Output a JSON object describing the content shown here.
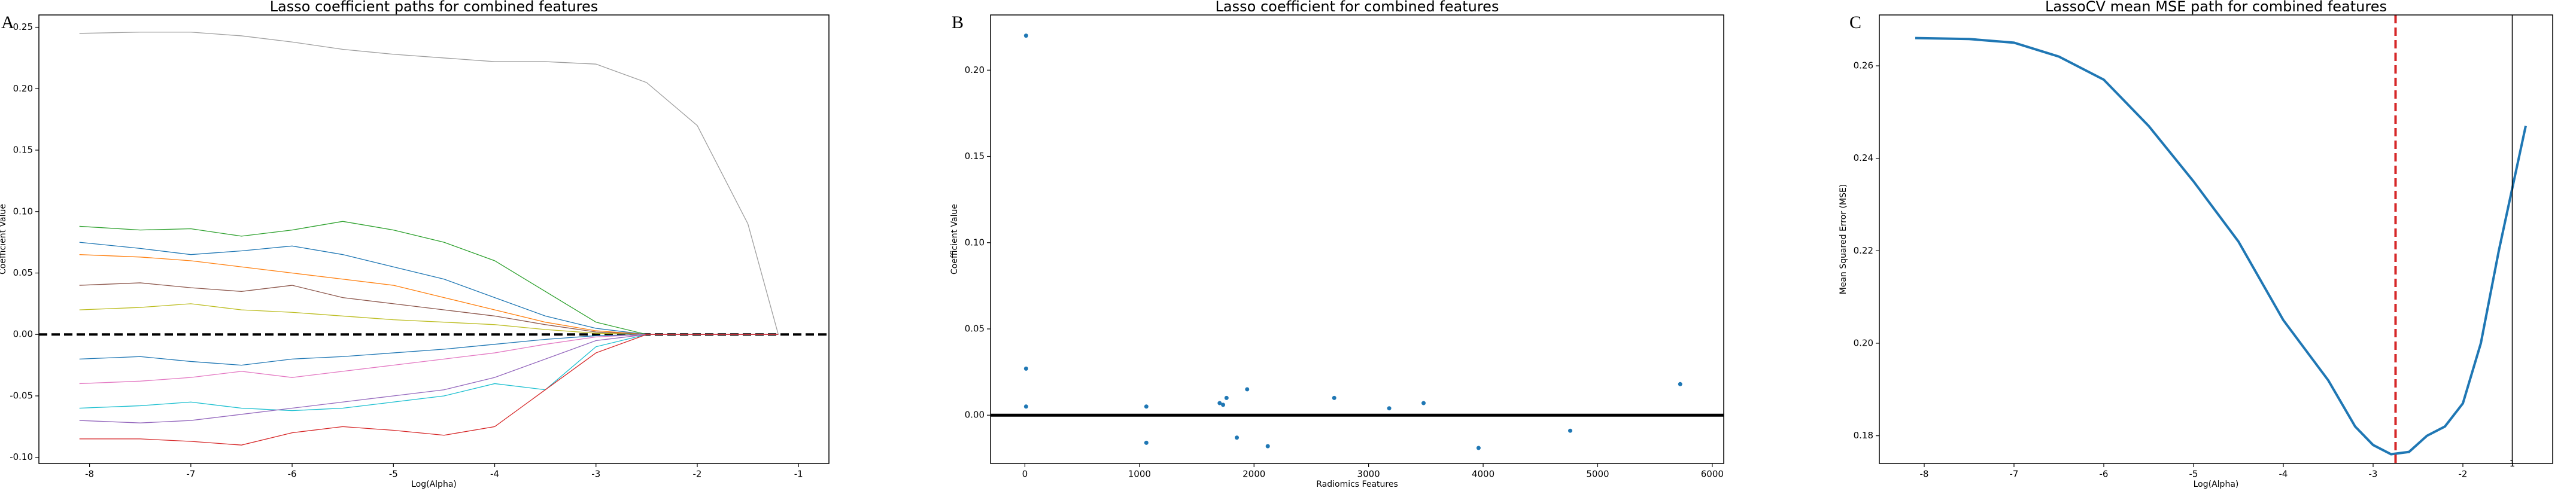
{
  "chart_data": [
    {
      "type": "line",
      "panel_label": "A",
      "title": "Lasso coefficient paths for combined features",
      "x_label": "Log(Alpha)",
      "y_label": "Coefficient Value",
      "x": [
        -8.1,
        -7.5,
        -7,
        -6.5,
        -6,
        -5.5,
        -5,
        -4.5,
        -4,
        -3.5,
        -3,
        -2.5,
        -2,
        -1.5,
        -1.2
      ],
      "series": [
        {
          "color": "#9e9e9e",
          "values": [
            0.245,
            0.246,
            0.246,
            0.243,
            0.238,
            0.232,
            0.228,
            0.225,
            0.222,
            0.222,
            0.22,
            0.205,
            0.17,
            0.09,
            0
          ]
        },
        {
          "color": "#2ca02c",
          "values": [
            0.088,
            0.085,
            0.086,
            0.08,
            0.085,
            0.092,
            0.085,
            0.075,
            0.06,
            0.035,
            0.01,
            0,
            0,
            0,
            0
          ]
        },
        {
          "color": "#1f77b4",
          "values": [
            0.075,
            0.07,
            0.065,
            0.068,
            0.072,
            0.065,
            0.055,
            0.045,
            0.03,
            0.015,
            0.005,
            0,
            0,
            0,
            0
          ]
        },
        {
          "color": "#ff7f0e",
          "values": [
            0.065,
            0.063,
            0.06,
            0.055,
            0.05,
            0.045,
            0.04,
            0.03,
            0.02,
            0.01,
            0.003,
            0,
            0,
            0,
            0
          ]
        },
        {
          "color": "#8c564b",
          "values": [
            0.04,
            0.042,
            0.038,
            0.035,
            0.04,
            0.03,
            0.025,
            0.02,
            0.015,
            0.008,
            0.002,
            0,
            0,
            0,
            0
          ]
        },
        {
          "color": "#bcbd22",
          "values": [
            0.02,
            0.022,
            0.025,
            0.02,
            0.018,
            0.015,
            0.012,
            0.01,
            0.008,
            0.004,
            0.001,
            0,
            0,
            0,
            0
          ]
        },
        {
          "color": "#1f77b4",
          "values": [
            -0.02,
            -0.018,
            -0.022,
            -0.025,
            -0.02,
            -0.018,
            -0.015,
            -0.012,
            -0.008,
            -0.004,
            -0.001,
            0,
            0,
            0,
            0
          ]
        },
        {
          "color": "#e377c2",
          "values": [
            -0.04,
            -0.038,
            -0.035,
            -0.03,
            -0.035,
            -0.03,
            -0.025,
            -0.02,
            -0.015,
            -0.008,
            -0.002,
            0,
            0,
            0,
            0
          ]
        },
        {
          "color": "#17becf",
          "values": [
            -0.06,
            -0.058,
            -0.055,
            -0.06,
            -0.062,
            -0.06,
            -0.055,
            -0.05,
            -0.04,
            -0.045,
            -0.01,
            0,
            0,
            0,
            0
          ]
        },
        {
          "color": "#9467bd",
          "values": [
            -0.07,
            -0.072,
            -0.07,
            -0.065,
            -0.06,
            -0.055,
            -0.05,
            -0.045,
            -0.035,
            -0.02,
            -0.005,
            0,
            0,
            0,
            0
          ]
        },
        {
          "color": "#d62728",
          "values": [
            -0.085,
            -0.085,
            -0.087,
            -0.09,
            -0.08,
            -0.075,
            -0.078,
            -0.082,
            -0.075,
            -0.045,
            -0.015,
            0,
            0,
            0,
            0
          ]
        }
      ],
      "hline": {
        "y": 0,
        "style": "dashed",
        "color": "#000000"
      },
      "xlim": [
        -8.5,
        -0.7
      ],
      "xticks": [
        -8,
        -7,
        -6,
        -5,
        -4,
        -3,
        -2,
        -1
      ],
      "ylim": [
        -0.105,
        0.26
      ],
      "yticks": [
        {
          "value": -0.1,
          "label": "-0.10"
        },
        {
          "value": -0.05,
          "label": "-0.05"
        },
        {
          "value": 0,
          "label": "0.00"
        },
        {
          "value": 0.05,
          "label": "0.05"
        },
        {
          "value": 0.1,
          "label": "0.10"
        },
        {
          "value": 0.15,
          "label": "0.15"
        },
        {
          "value": 0.2,
          "label": "0.20"
        },
        {
          "value": 0.25,
          "label": "0.25"
        }
      ]
    },
    {
      "type": "scatter",
      "panel_label": "B",
      "title": "Lasso coefficient  for combined features",
      "x_label": "Radiomics Features",
      "y_label": "Coefficient Value",
      "x": [
        10,
        10,
        10,
        1060,
        1060,
        1700,
        1730,
        1760,
        1850,
        1940,
        2120,
        2700,
        3180,
        3480,
        3960,
        4760,
        5720
      ],
      "values": [
        0.22,
        0.027,
        0.005,
        0.005,
        -0.016,
        0.007,
        0.006,
        0.01,
        -0.013,
        0.015,
        -0.018,
        0.01,
        0.004,
        0.007,
        -0.019,
        -0.009,
        0.018
      ],
      "color": "#1f77b4",
      "hline": {
        "y": 0,
        "style": "solid",
        "color": "#000000"
      },
      "xlim": [
        -300,
        6100
      ],
      "xticks": [
        0,
        1000,
        2000,
        3000,
        4000,
        5000,
        6000
      ],
      "ylim": [
        -0.028,
        0.232
      ],
      "yticks": [
        {
          "value": 0,
          "label": "0.00"
        },
        {
          "value": 0.05,
          "label": "0.05"
        },
        {
          "value": 0.1,
          "label": "0.10"
        },
        {
          "value": 0.15,
          "label": "0.15"
        },
        {
          "value": 0.2,
          "label": "0.20"
        }
      ]
    },
    {
      "type": "line",
      "panel_label": "C",
      "title": "LassoCV mean MSE path for combined features",
      "x_label": "Log(Alpha)",
      "y_label": "Mean Squared Error (MSE)",
      "x": [
        -8.1,
        -7.5,
        -7,
        -6.5,
        -6,
        -5.5,
        -5,
        -4.5,
        -4,
        -3.5,
        -3.2,
        -3,
        -2.8,
        -2.6,
        -2.4,
        -2.2,
        -2,
        -1.8,
        -1.6,
        -1.3
      ],
      "series": [
        {
          "color": "#1f77b4",
          "values": [
            0.266,
            0.2658,
            0.265,
            0.262,
            0.257,
            0.247,
            0.235,
            0.222,
            0.205,
            0.192,
            0.182,
            0.178,
            0.176,
            0.1765,
            0.18,
            0.182,
            0.187,
            0.2,
            0.22,
            0.247
          ]
        }
      ],
      "vlines": [
        {
          "x": -2.75,
          "color": "#d62728",
          "style": "dashed"
        },
        {
          "x": -1.45,
          "color": "#000000",
          "style": "solid"
        }
      ],
      "annotations": [
        {
          "text": "1",
          "x": -1.45,
          "y": 0.1755
        }
      ],
      "xlim": [
        -8.5,
        -1.0
      ],
      "xticks": [
        -8,
        -7,
        -6,
        -5,
        -4,
        -3,
        -2
      ],
      "ylim": [
        0.174,
        0.271
      ],
      "yticks": [
        0.18,
        {
          "value": 0.2,
          "label": "0.20"
        },
        0.22,
        0.24,
        0.26
      ]
    }
  ]
}
